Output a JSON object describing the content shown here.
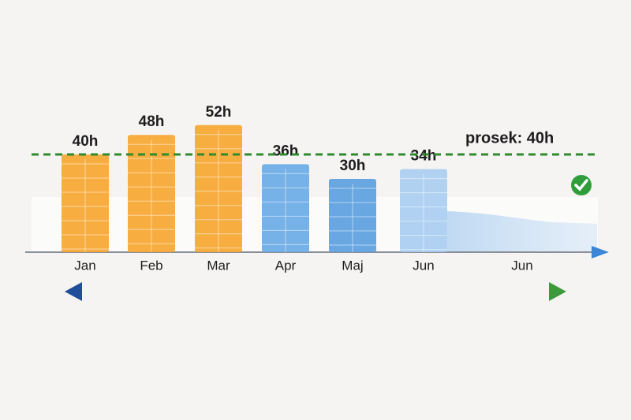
{
  "chart_data": {
    "type": "bar",
    "categories": [
      "Jan",
      "Feb",
      "Mar",
      "Apr",
      "Maj",
      "Jun",
      "Jun"
    ],
    "values": [
      40,
      48,
      52,
      36,
      30,
      34,
      null
    ],
    "value_labels": [
      "40h",
      "48h",
      "52h",
      "36h",
      "30h",
      "34h",
      null
    ],
    "colors": [
      "#f7a631",
      "#f7a631",
      "#f7a631",
      "#6aaae6",
      "#5b9fe0",
      "#a9cdf0",
      null
    ],
    "average": {
      "value": 40,
      "label": "prosek: 40h",
      "color": "#2e8b2e"
    }
  }
}
